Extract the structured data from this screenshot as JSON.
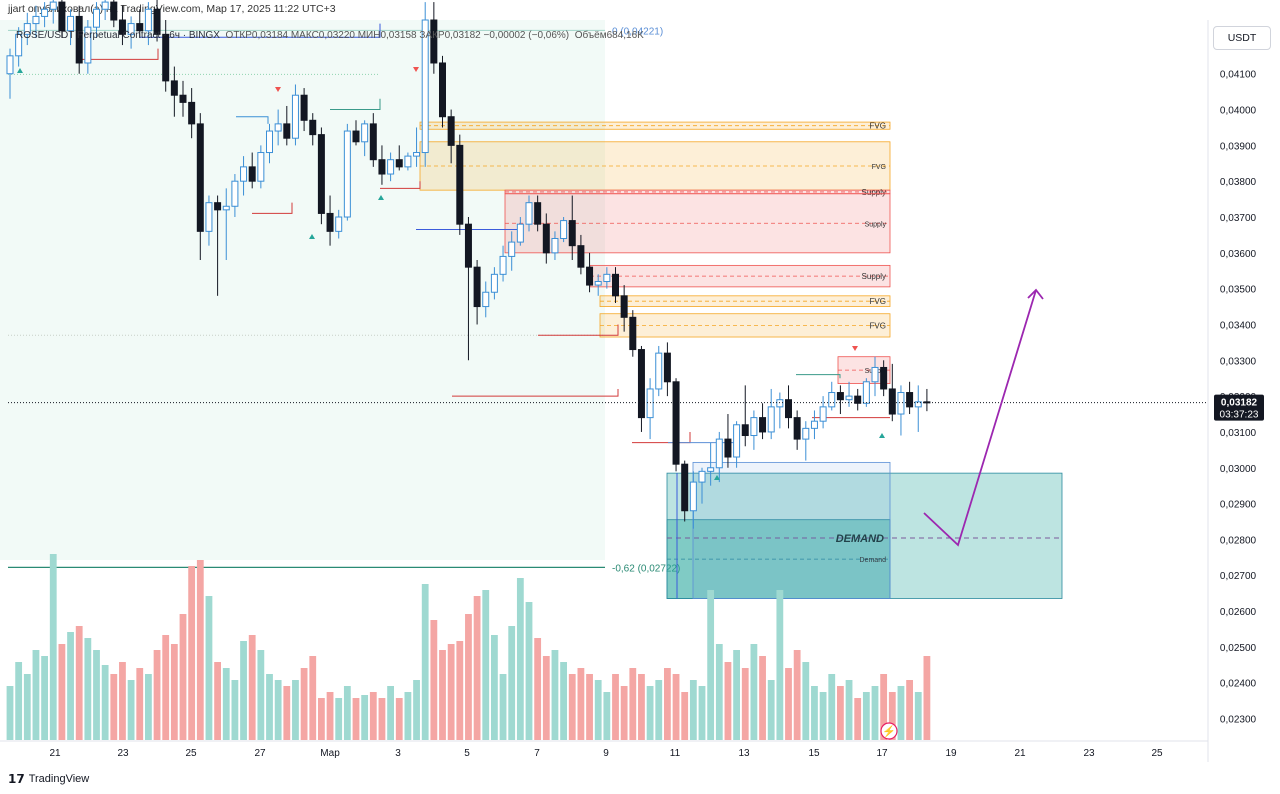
{
  "header": {
    "publish_note": "jjart опубликовал(а) на TradingView.com, Мар 17, 2025 11:22 UTC+3",
    "symbol_line": "ROSE/USDT Perpetual Contract · 6ч · BINGX",
    "ohlc_line": "ОТКР0,03184  МАКС0,03220  МИН0,03158  ЗАКР0,03182  −0,00002 (−0,06%)",
    "volume_line": "Объём684,16K",
    "currency": "USDT"
  },
  "footer": {
    "logo_text": "TradingView"
  },
  "colors": {
    "up": "#26a69a",
    "down": "#ef5350",
    "demand": "#26a69a",
    "fvg": "#f5a623",
    "supply": "#ef5350",
    "arrow": "#9c27b0"
  },
  "chart_data": {
    "type": "candlestick",
    "price_axis": {
      "ticks": [
        "0,04100",
        "0,04000",
        "0,03900",
        "0,03800",
        "0,03700",
        "0,03600",
        "0,03500",
        "0,03400",
        "0,03300",
        "0,03200",
        "0,03100",
        "0,03000",
        "0,02900",
        "0,02800",
        "0,02700",
        "0,02600",
        "0,02500",
        "0,02400",
        "0,02300"
      ],
      "range": [
        0.0224,
        0.0425
      ],
      "last_price": "0,03182",
      "countdown": "03:37:23",
      "last_value": 0.03182
    },
    "time_axis": {
      "ticks": [
        "21",
        "23",
        "25",
        "27",
        "Мар",
        "3",
        "5",
        "7",
        "9",
        "11",
        "13",
        "15",
        "17",
        "19",
        "21",
        "23",
        "25"
      ]
    },
    "fib_labels": [
      {
        "text": "0 (0,04221)",
        "price": 0.04221
      },
      {
        "text": "-0,62 (0,02722)",
        "price": 0.02722
      }
    ],
    "zones": [
      {
        "label": "FVG",
        "kind": "fvg",
        "p_top": 0.03965,
        "p_bot": 0.03945
      },
      {
        "label": "FVG",
        "kind": "fvg",
        "p_top": 0.0391,
        "p_bot": 0.03775
      },
      {
        "label": "Supply",
        "kind": "supply",
        "p_top": 0.03775,
        "p_bot": 0.03765
      },
      {
        "label": "Supply",
        "kind": "supply",
        "p_top": 0.03765,
        "p_bot": 0.036
      },
      {
        "label": "Supply",
        "kind": "supply",
        "p_top": 0.03565,
        "p_bot": 0.03505
      },
      {
        "label": "FVG",
        "kind": "fvg",
        "p_top": 0.0348,
        "p_bot": 0.0345
      },
      {
        "label": "FVG",
        "kind": "fvg",
        "p_top": 0.0343,
        "p_bot": 0.03365
      },
      {
        "label": "Supply",
        "kind": "supply",
        "p_top": 0.0331,
        "p_bot": 0.03235
      },
      {
        "label": "Demand",
        "kind": "demand",
        "p_top": 0.02985,
        "p_bot": 0.02635
      },
      {
        "label": "Demand",
        "kind": "demand",
        "p_top": 0.02855,
        "p_bot": 0.02635
      }
    ],
    "demand_label": "DEMAND",
    "candles": [
      [
        0.041,
        0.0417,
        0.0403,
        0.0415
      ],
      [
        0.0415,
        0.0423,
        0.0412,
        0.0421
      ],
      [
        0.0421,
        0.0427,
        0.0418,
        0.0424
      ],
      [
        0.0424,
        0.0429,
        0.042,
        0.0426
      ],
      [
        0.0426,
        0.043,
        0.0423,
        0.0428
      ],
      [
        0.0428,
        0.0432,
        0.0424,
        0.043
      ],
      [
        0.043,
        0.0431,
        0.042,
        0.0422
      ],
      [
        0.0422,
        0.0428,
        0.0418,
        0.0426
      ],
      [
        0.0426,
        0.0429,
        0.041,
        0.0413
      ],
      [
        0.0413,
        0.0425,
        0.041,
        0.0423
      ],
      [
        0.0423,
        0.043,
        0.042,
        0.0428
      ],
      [
        0.0428,
        0.0433,
        0.0425,
        0.043
      ],
      [
        0.043,
        0.0432,
        0.0423,
        0.0425
      ],
      [
        0.0425,
        0.0429,
        0.0418,
        0.0421
      ],
      [
        0.0421,
        0.0426,
        0.0417,
        0.0424
      ],
      [
        0.0424,
        0.0428,
        0.042,
        0.0422
      ],
      [
        0.0422,
        0.043,
        0.0418,
        0.0428
      ],
      [
        0.0428,
        0.0431,
        0.0419,
        0.0421
      ],
      [
        0.0421,
        0.0425,
        0.0405,
        0.0408
      ],
      [
        0.0408,
        0.0412,
        0.0398,
        0.0404
      ],
      [
        0.0404,
        0.0408,
        0.0398,
        0.0402
      ],
      [
        0.0402,
        0.0406,
        0.0392,
        0.0396
      ],
      [
        0.0396,
        0.0399,
        0.0358,
        0.0366
      ],
      [
        0.0366,
        0.0376,
        0.0362,
        0.0374
      ],
      [
        0.0374,
        0.0376,
        0.0348,
        0.0372
      ],
      [
        0.0372,
        0.0378,
        0.0358,
        0.0373
      ],
      [
        0.0373,
        0.0382,
        0.037,
        0.038
      ],
      [
        0.038,
        0.0387,
        0.0376,
        0.0384
      ],
      [
        0.0384,
        0.0388,
        0.0378,
        0.038
      ],
      [
        0.038,
        0.039,
        0.0378,
        0.0388
      ],
      [
        0.0388,
        0.0396,
        0.0385,
        0.0394
      ],
      [
        0.0394,
        0.04,
        0.039,
        0.0396
      ],
      [
        0.0396,
        0.0401,
        0.039,
        0.0392
      ],
      [
        0.0392,
        0.0407,
        0.039,
        0.0404
      ],
      [
        0.0404,
        0.0406,
        0.0394,
        0.0397
      ],
      [
        0.0397,
        0.0399,
        0.039,
        0.0393
      ],
      [
        0.0393,
        0.0395,
        0.0368,
        0.0371
      ],
      [
        0.0371,
        0.0376,
        0.0362,
        0.0366
      ],
      [
        0.0366,
        0.0372,
        0.0364,
        0.037
      ],
      [
        0.037,
        0.0396,
        0.0369,
        0.0394
      ],
      [
        0.0394,
        0.0397,
        0.039,
        0.0391
      ],
      [
        0.0391,
        0.0397,
        0.0387,
        0.0396
      ],
      [
        0.0396,
        0.0399,
        0.0384,
        0.0386
      ],
      [
        0.0386,
        0.039,
        0.0379,
        0.0382
      ],
      [
        0.0382,
        0.0388,
        0.038,
        0.0386
      ],
      [
        0.0386,
        0.039,
        0.0383,
        0.0384
      ],
      [
        0.0384,
        0.0388,
        0.0383,
        0.0387
      ],
      [
        0.0387,
        0.0395,
        0.0384,
        0.0388
      ],
      [
        0.0388,
        0.043,
        0.0384,
        0.0425
      ],
      [
        0.0425,
        0.043,
        0.041,
        0.0413
      ],
      [
        0.0413,
        0.0415,
        0.0395,
        0.0398
      ],
      [
        0.0398,
        0.04,
        0.0385,
        0.039
      ],
      [
        0.039,
        0.0393,
        0.0365,
        0.0368
      ],
      [
        0.0368,
        0.037,
        0.033,
        0.0356
      ],
      [
        0.0356,
        0.0358,
        0.034,
        0.0345
      ],
      [
        0.0345,
        0.0352,
        0.0342,
        0.0349
      ],
      [
        0.0349,
        0.0356,
        0.0347,
        0.0354
      ],
      [
        0.0354,
        0.0362,
        0.0352,
        0.0359
      ],
      [
        0.0359,
        0.0366,
        0.0355,
        0.0363
      ],
      [
        0.0363,
        0.037,
        0.0362,
        0.0368
      ],
      [
        0.0368,
        0.0376,
        0.0366,
        0.0374
      ],
      [
        0.0374,
        0.0376,
        0.0366,
        0.0368
      ],
      [
        0.0368,
        0.0371,
        0.0357,
        0.036
      ],
      [
        0.036,
        0.0366,
        0.0358,
        0.0364
      ],
      [
        0.0364,
        0.037,
        0.0363,
        0.0369
      ],
      [
        0.0369,
        0.0376,
        0.0358,
        0.0362
      ],
      [
        0.0362,
        0.0365,
        0.0354,
        0.0356
      ],
      [
        0.0356,
        0.036,
        0.0349,
        0.0351
      ],
      [
        0.0351,
        0.0354,
        0.0348,
        0.0352
      ],
      [
        0.0352,
        0.0356,
        0.035,
        0.0354
      ],
      [
        0.0354,
        0.0356,
        0.0346,
        0.0348
      ],
      [
        0.0348,
        0.0351,
        0.0338,
        0.0342
      ],
      [
        0.0342,
        0.0344,
        0.0331,
        0.0333
      ],
      [
        0.0333,
        0.0334,
        0.031,
        0.0314
      ],
      [
        0.0314,
        0.0325,
        0.0308,
        0.0322
      ],
      [
        0.0322,
        0.0334,
        0.032,
        0.0332
      ],
      [
        0.0332,
        0.0335,
        0.032,
        0.0324
      ],
      [
        0.0324,
        0.0325,
        0.0299,
        0.0301
      ],
      [
        0.0301,
        0.0302,
        0.0285,
        0.0288
      ],
      [
        0.0288,
        0.0299,
        0.0283,
        0.0296
      ],
      [
        0.0296,
        0.03,
        0.029,
        0.0299
      ],
      [
        0.0299,
        0.0307,
        0.0295,
        0.03
      ],
      [
        0.03,
        0.031,
        0.0296,
        0.0308
      ],
      [
        0.0308,
        0.0315,
        0.03,
        0.0303
      ],
      [
        0.0303,
        0.0313,
        0.03,
        0.0312
      ],
      [
        0.0312,
        0.0323,
        0.0306,
        0.0309
      ],
      [
        0.0309,
        0.0316,
        0.0305,
        0.0314
      ],
      [
        0.0314,
        0.0318,
        0.0308,
        0.031
      ],
      [
        0.031,
        0.0322,
        0.0308,
        0.0317
      ],
      [
        0.0317,
        0.0321,
        0.0311,
        0.0319
      ],
      [
        0.0319,
        0.0323,
        0.0311,
        0.0314
      ],
      [
        0.0314,
        0.0316,
        0.0305,
        0.0308
      ],
      [
        0.0308,
        0.0313,
        0.0302,
        0.0311
      ],
      [
        0.0311,
        0.0316,
        0.0308,
        0.0313
      ],
      [
        0.0313,
        0.032,
        0.0311,
        0.0317
      ],
      [
        0.0317,
        0.0324,
        0.0316,
        0.0321
      ],
      [
        0.0321,
        0.0323,
        0.0315,
        0.0319
      ],
      [
        0.0319,
        0.0324,
        0.0317,
        0.032
      ],
      [
        0.032,
        0.0322,
        0.0316,
        0.0318
      ],
      [
        0.0318,
        0.0325,
        0.0317,
        0.0324
      ],
      [
        0.0324,
        0.0331,
        0.032,
        0.0328
      ],
      [
        0.0328,
        0.033,
        0.032,
        0.0322
      ],
      [
        0.0322,
        0.0329,
        0.0313,
        0.0315
      ],
      [
        0.0315,
        0.0323,
        0.0309,
        0.0321
      ],
      [
        0.0321,
        0.0324,
        0.0315,
        0.0317
      ],
      [
        0.0317,
        0.0323,
        0.031,
        0.03184
      ],
      [
        0.03184,
        0.0322,
        0.03158,
        0.03182
      ]
    ],
    "volumes": [
      0.18,
      0.26,
      0.22,
      0.3,
      0.28,
      0.62,
      0.32,
      0.36,
      0.38,
      0.34,
      0.3,
      0.25,
      0.22,
      0.26,
      0.2,
      0.24,
      0.22,
      0.3,
      0.35,
      0.32,
      0.42,
      0.58,
      0.6,
      0.48,
      0.26,
      0.24,
      0.2,
      0.33,
      0.35,
      0.3,
      0.22,
      0.2,
      0.18,
      0.2,
      0.24,
      0.28,
      0.14,
      0.16,
      0.14,
      0.18,
      0.14,
      0.15,
      0.16,
      0.14,
      0.18,
      0.14,
      0.16,
      0.2,
      0.52,
      0.4,
      0.3,
      0.32,
      0.33,
      0.42,
      0.48,
      0.5,
      0.35,
      0.22,
      0.38,
      0.54,
      0.46,
      0.34,
      0.28,
      0.3,
      0.26,
      0.22,
      0.24,
      0.22,
      0.2,
      0.16,
      0.22,
      0.18,
      0.24,
      0.22,
      0.18,
      0.2,
      0.24,
      0.22,
      0.16,
      0.2,
      0.18,
      0.5,
      0.32,
      0.26,
      0.3,
      0.24,
      0.32,
      0.28,
      0.2,
      0.5,
      0.24,
      0.3,
      0.26,
      0.18,
      0.16,
      0.22,
      0.18,
      0.2,
      0.14,
      0.16,
      0.18,
      0.22,
      0.16,
      0.18,
      0.2,
      0.16,
      0.28
    ]
  }
}
